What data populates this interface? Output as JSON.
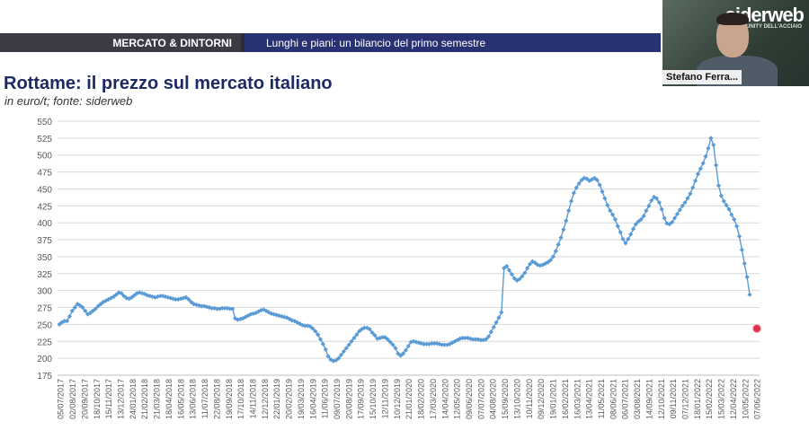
{
  "banner": {
    "section": "MERCATO & DINTORNI",
    "topic": "Lunghi e piani: un bilancio del primo semestre"
  },
  "webcam": {
    "logo": "siderweb",
    "logo_sub": "LA COMMUNITY DELL'ACCIAIO",
    "speaker_name": "Stefano Ferra..."
  },
  "colors": {
    "series": "#5b9bd5",
    "title": "#1d2a63",
    "banner_dark": "#3b3b45",
    "banner_blue": "#283272",
    "pointer": "#e0304a"
  },
  "chart_data": {
    "type": "line",
    "title": "Rottame: il prezzo sul mercato italiano",
    "subtitle": "in euro/t; fonte: siderweb",
    "xlabel": "",
    "ylabel": "",
    "ylim": [
      175,
      550
    ],
    "yticks": [
      175,
      200,
      225,
      250,
      275,
      300,
      325,
      350,
      375,
      400,
      425,
      450,
      475,
      500,
      525,
      550
    ],
    "grid": true,
    "legend": "none",
    "x_tick_labels": [
      "05/07/2017",
      "02/08/2017",
      "20/09/2017",
      "18/10/2017",
      "15/11/2017",
      "13/12/2017",
      "24/01/2018",
      "21/02/2018",
      "21/03/2018",
      "18/04/2018",
      "16/05/2018",
      "13/06/2018",
      "11/07/2018",
      "22/08/2018",
      "19/09/2018",
      "17/10/2018",
      "14/11/2018",
      "12/12/2018",
      "22/01/2019",
      "20/02/2019",
      "19/03/2019",
      "16/04/2019",
      "11/06/2019",
      "09/07/2019",
      "20/08/2019",
      "17/09/2019",
      "15/10/2019",
      "12/11/2019",
      "10/12/2019",
      "21/01/2020",
      "18/02/2020",
      "17/03/2020",
      "14/04/2020",
      "12/05/2020",
      "09/06/2020",
      "07/07/2020",
      "04/08/2020",
      "15/09/2020",
      "13/10/2020",
      "10/11/2020",
      "09/12/2020",
      "19/01/2021",
      "16/02/2021",
      "16/03/2021",
      "13/04/2021",
      "11/05/2021",
      "08/06/2021",
      "06/07/2021",
      "03/08/2021",
      "14/09/2021",
      "12/10/2021",
      "09/11/2021",
      "07/12/2021",
      "18/01/2022",
      "15/02/2022",
      "15/03/2022",
      "12/04/2022",
      "10/05/2022",
      "07/06/2022"
    ],
    "series": [
      {
        "values": [
          250,
          253,
          255,
          255,
          262,
          270,
          275,
          280,
          278,
          275,
          270,
          265,
          267,
          270,
          273,
          277,
          280,
          283,
          285,
          287,
          289,
          291,
          294,
          297,
          296,
          292,
          289,
          288,
          290,
          293,
          296,
          297,
          296,
          295,
          293,
          292,
          291,
          290,
          291,
          292,
          292,
          291,
          290,
          289,
          288,
          287,
          287,
          288,
          289,
          290,
          287,
          283,
          280,
          279,
          278,
          277,
          277,
          276,
          275,
          274,
          274,
          273,
          273,
          274,
          274,
          274,
          273,
          273,
          259,
          257,
          258,
          259,
          261,
          263,
          265,
          266,
          267,
          269,
          271,
          272,
          270,
          268,
          266,
          265,
          264,
          263,
          262,
          261,
          260,
          258,
          256,
          255,
          253,
          251,
          249,
          248,
          248,
          247,
          244,
          240,
          235,
          228,
          221,
          213,
          203,
          198,
          196,
          197,
          200,
          205,
          210,
          215,
          220,
          225,
          230,
          235,
          240,
          243,
          245,
          245,
          243,
          238,
          234,
          229,
          230,
          231,
          231,
          228,
          224,
          220,
          215,
          207,
          204,
          207,
          212,
          218,
          224,
          225,
          224,
          223,
          222,
          221,
          221,
          221,
          222,
          222,
          222,
          221,
          220,
          220,
          220,
          221,
          223,
          225,
          227,
          229,
          230,
          230,
          230,
          229,
          228,
          228,
          228,
          227,
          227,
          228,
          232,
          239,
          246,
          253,
          260,
          268,
          333,
          336,
          330,
          324,
          318,
          315,
          317,
          321,
          326,
          333,
          339,
          343,
          341,
          338,
          337,
          338,
          340,
          342,
          345,
          350,
          358,
          368,
          378,
          390,
          403,
          418,
          432,
          444,
          452,
          458,
          463,
          466,
          465,
          462,
          464,
          466,
          463,
          456,
          446,
          436,
          426,
          418,
          412,
          405,
          395,
          386,
          376,
          370,
          376,
          383,
          391,
          398,
          402,
          405,
          410,
          418,
          425,
          433,
          438,
          436,
          430,
          420,
          407,
          399,
          398,
          401,
          407,
          413,
          419,
          425,
          430,
          436,
          443,
          452,
          462,
          472,
          480,
          488,
          498,
          510,
          525,
          515,
          485,
          455,
          440,
          432,
          426,
          420,
          412,
          405,
          395,
          380,
          360,
          340,
          320,
          294
        ]
      }
    ]
  }
}
